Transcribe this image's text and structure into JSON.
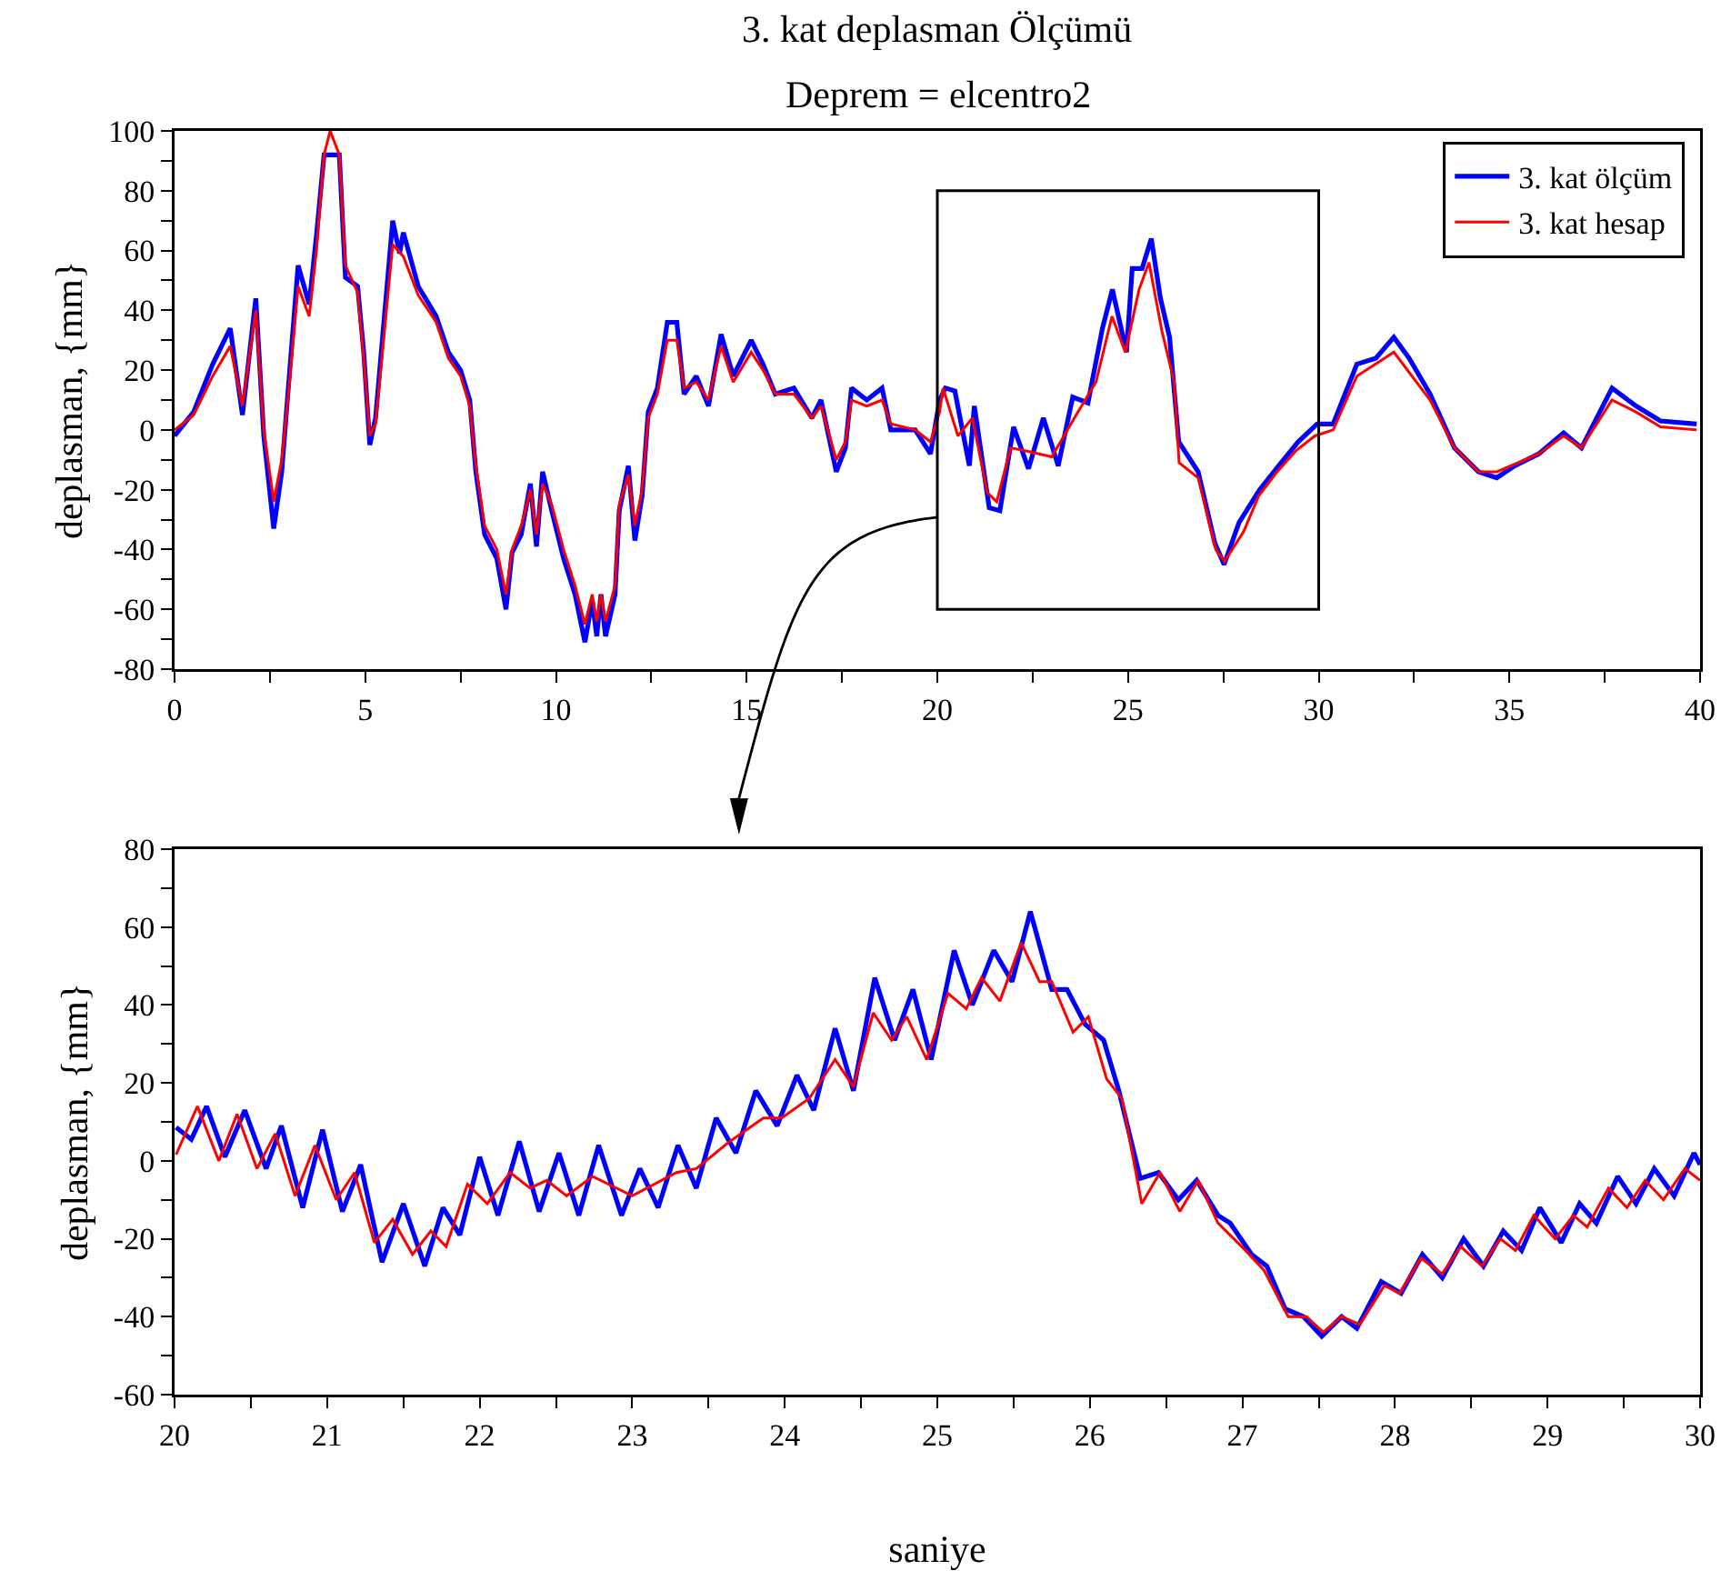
{
  "chart_data": [
    {
      "type": "line",
      "title": "3. kat deplasman Ölçümü",
      "subtitle": "Deprem = elcentro2",
      "ylabel": "deplasman, {mm}",
      "xlim": [
        0,
        40
      ],
      "xticks": [
        0,
        {
          "value": 2.5,
          "label": null
        },
        5,
        {
          "value": 7.5,
          "label": null
        },
        10,
        {
          "value": 12.5,
          "label": null
        },
        15,
        {
          "value": 17.5,
          "label": null
        },
        20,
        {
          "value": 22.5,
          "label": null
        },
        25,
        {
          "value": 27.5,
          "label": null
        },
        30,
        {
          "value": 32.5,
          "label": null
        },
        35,
        {
          "value": 37.5,
          "label": null
        },
        40
      ],
      "ylim": [
        -80,
        100
      ],
      "yticks": [
        -80,
        {
          "value": -70,
          "label": null
        },
        -60,
        {
          "value": -50,
          "label": null
        },
        -40,
        {
          "value": -30,
          "label": null
        },
        -20,
        {
          "value": -10,
          "label": null
        },
        0,
        {
          "value": 10,
          "label": null
        },
        20,
        {
          "value": 30,
          "label": null
        },
        40,
        {
          "value": 50,
          "label": null
        },
        60,
        {
          "value": 70,
          "label": null
        },
        80,
        {
          "value": 90,
          "label": null
        },
        100
      ],
      "grid": false,
      "legend": "top right",
      "line_style": "solid",
      "marker": "none",
      "series": [
        {
          "name": "3. kat ölçüm",
          "color": "#0000ff",
          "x": [
            0,
            0.5,
            1,
            1.46,
            1.78,
            2.13,
            2.34,
            2.6,
            2.81,
            2.97,
            3.24,
            3.53,
            3.72,
            3.92,
            4.32,
            4.48,
            4.8,
            4.96,
            5.12,
            5.27,
            5.72,
            5.9,
            6.0,
            6.39,
            6.86,
            7.18,
            7.5,
            7.74,
            7.9,
            8.13,
            8.45,
            8.69,
            8.85,
            9.09,
            9.33,
            9.49,
            9.65,
            9.89,
            10.2,
            10.5,
            10.76,
            10.95,
            11.07,
            11.18,
            11.3,
            11.55,
            11.66,
            11.9,
            12.07,
            12.26,
            12.42,
            12.66,
            12.92,
            13.17,
            13.36,
            13.68,
            14.0,
            14.33,
            14.65,
            15.12,
            15.43,
            15.75,
            16.24,
            16.71,
            16.95,
            17.35,
            17.59,
            17.75,
            18.15,
            18.55,
            18.78,
            19.42,
            19.82,
            20.06,
            20.21,
            20.46,
            20.84,
            20.97,
            21.36,
            21.64,
            22.0,
            22.39,
            22.78,
            23.17,
            23.55,
            23.95,
            24.33,
            24.59,
            24.96,
            25.11,
            25.37,
            25.61,
            25.85,
            26.09,
            26.33,
            26.84,
            27.28,
            27.52,
            27.91,
            28.45,
            28.95,
            29.46,
            29.96,
            30.38,
            31.0,
            31.5,
            31.97,
            32.37,
            32.92,
            33.56,
            34.19,
            34.67,
            35.14,
            35.77,
            36.42,
            36.89,
            37.69,
            38.32,
            38.96,
            39.91
          ],
          "values": [
            -2,
            6,
            22,
            34,
            5,
            44,
            -2,
            -33,
            -14,
            12,
            55,
            42,
            65,
            92,
            92,
            51,
            48,
            26,
            -5,
            4,
            70,
            59,
            66,
            48,
            38,
            26,
            20,
            10,
            -14,
            -35,
            -43,
            -60,
            -41,
            -35,
            -18,
            -39,
            -14,
            -27,
            -43,
            -55,
            -71,
            -57,
            -69,
            -55,
            -69,
            -55,
            -27,
            -12,
            -37,
            -22,
            6,
            14,
            36,
            36,
            12,
            18,
            8,
            32,
            18,
            30,
            22,
            12,
            14,
            4,
            10,
            -14,
            -6,
            14,
            10,
            14,
            0,
            0,
            -8,
            10,
            14,
            13,
            -12,
            8,
            -26,
            -27,
            1,
            -13,
            4,
            -12,
            11,
            9,
            34,
            47,
            26,
            54,
            54,
            64,
            44,
            31,
            -4,
            -14,
            -38,
            -45,
            -31,
            -20,
            -12,
            -4,
            2,
            2,
            22,
            24,
            31,
            24,
            12,
            -6,
            -14,
            -16,
            -12,
            -8,
            -1,
            -6,
            14,
            8,
            3,
            2
          ]
        },
        {
          "name": "3. kat hesap",
          "color": "#ff0000",
          "x": [
            0,
            0.5,
            1,
            1.46,
            1.78,
            2.13,
            2.34,
            2.6,
            2.81,
            2.97,
            3.24,
            3.53,
            3.72,
            3.92,
            4.08,
            4.32,
            4.48,
            4.8,
            4.96,
            5.12,
            5.27,
            5.72,
            6.0,
            6.39,
            6.86,
            7.18,
            7.5,
            7.74,
            7.9,
            8.13,
            8.45,
            8.69,
            8.85,
            9.09,
            9.33,
            9.49,
            9.65,
            9.89,
            10.2,
            10.5,
            10.76,
            10.95,
            11.07,
            11.18,
            11.3,
            11.55,
            11.66,
            11.9,
            12.07,
            12.26,
            12.42,
            12.66,
            12.92,
            13.17,
            13.36,
            13.68,
            14.0,
            14.33,
            14.65,
            15.12,
            15.43,
            15.75,
            16.24,
            16.71,
            16.95,
            17.35,
            17.59,
            17.75,
            18.15,
            18.55,
            18.78,
            19.42,
            19.82,
            20.06,
            20.15,
            20.54,
            20.92,
            21.31,
            21.56,
            21.92,
            22.33,
            23.0,
            23.64,
            24.16,
            24.58,
            24.93,
            25.29,
            25.55,
            25.89,
            26.21,
            26.34,
            26.84,
            27.3,
            27.53,
            28.03,
            28.43,
            28.91,
            29.4,
            29.9,
            30.38,
            31.0,
            31.97,
            32.92,
            33.56,
            34.19,
            34.67,
            35.77,
            36.42,
            36.89,
            37.69,
            38.32,
            38.96,
            39.91
          ],
          "values": [
            0,
            5,
            18,
            28,
            8,
            40,
            0,
            -24,
            -10,
            10,
            48,
            38,
            60,
            92,
            100,
            92,
            55,
            46,
            24,
            -2,
            2,
            62,
            58,
            45,
            36,
            24,
            18,
            8,
            -12,
            -32,
            -40,
            -55,
            -40,
            -32,
            -20,
            -35,
            -18,
            -25,
            -40,
            -52,
            -65,
            -55,
            -64,
            -55,
            -64,
            -52,
            -25,
            -15,
            -32,
            -20,
            4,
            12,
            30,
            30,
            14,
            16,
            10,
            28,
            16,
            26,
            20,
            12,
            12,
            4,
            8,
            -10,
            -4,
            10,
            8,
            10,
            2,
            0,
            -4,
            6,
            14,
            -2,
            4,
            -21,
            -24,
            -6,
            -7,
            -9,
            5,
            16,
            38,
            26,
            47,
            56,
            33,
            16,
            -11,
            -16,
            -40,
            -44,
            -34,
            -22,
            -14,
            -7,
            -2,
            0,
            18,
            26,
            10,
            -6,
            -14,
            -14,
            -8,
            -2,
            -6,
            10,
            6,
            1,
            0
          ]
        }
      ]
    },
    {
      "type": "line",
      "xlabel": "saniye",
      "ylabel": "deplasman, {mm}",
      "xlim": [
        20,
        30
      ],
      "xticks": [
        20,
        {
          "value": 20.5,
          "label": null
        },
        21,
        {
          "value": 21.5,
          "label": null
        },
        22,
        {
          "value": 22.5,
          "label": null
        },
        23,
        {
          "value": 23.5,
          "label": null
        },
        24,
        {
          "value": 24.5,
          "label": null
        },
        25,
        {
          "value": 25.5,
          "label": null
        },
        26,
        {
          "value": 26.5,
          "label": null
        },
        27,
        {
          "value": 27.5,
          "label": null
        },
        28,
        {
          "value": 28.5,
          "label": null
        },
        29,
        {
          "value": 29.5,
          "label": null
        },
        30
      ],
      "ylim": [
        -60,
        80
      ],
      "yticks": [
        -60,
        {
          "value": -50,
          "label": null
        },
        -40,
        {
          "value": -30,
          "label": null
        },
        -20,
        {
          "value": -10,
          "label": null
        },
        0,
        {
          "value": 10,
          "label": null
        },
        20,
        {
          "value": 30,
          "label": null
        },
        40,
        {
          "value": 50,
          "label": null
        },
        60,
        {
          "value": 70,
          "label": null
        },
        80
      ],
      "grid": false,
      "line_style": "solid",
      "marker": "none",
      "series": [
        {
          "color": "#0000ff",
          "x": [
            20.01,
            20.11,
            20.21,
            20.33,
            20.46,
            20.6,
            20.7,
            20.84,
            20.97,
            21.1,
            21.22,
            21.36,
            21.5,
            21.64,
            21.76,
            21.87,
            22.0,
            22.12,
            22.26,
            22.39,
            22.52,
            22.65,
            22.78,
            22.93,
            23.05,
            23.17,
            23.3,
            23.42,
            23.55,
            23.68,
            23.81,
            23.95,
            24.08,
            24.19,
            24.33,
            24.45,
            24.59,
            24.72,
            24.84,
            24.96,
            25.11,
            25.23,
            25.37,
            25.49,
            25.61,
            25.75,
            25.85,
            25.97,
            26.09,
            26.19,
            26.33,
            26.45,
            26.58,
            26.7,
            26.84,
            26.92,
            27.06,
            27.16,
            27.28,
            27.4,
            27.52,
            27.65,
            27.75,
            27.91,
            28.04,
            28.18,
            28.31,
            28.45,
            28.58,
            28.71,
            28.83,
            28.95,
            29.09,
            29.21,
            29.32,
            29.46,
            29.58,
            29.7,
            29.83,
            29.96,
            30
          ],
          "values": [
            8.6,
            5.5,
            14,
            1,
            13,
            -2,
            9,
            -12,
            8,
            -13,
            -1,
            -26,
            -11,
            -27,
            -12,
            -19,
            1,
            -14,
            5,
            -13,
            2,
            -14,
            4,
            -14,
            -2,
            -12,
            4,
            -7,
            11,
            2,
            18,
            9,
            22,
            13,
            34,
            18,
            47,
            31,
            44,
            26,
            54,
            40,
            54,
            46,
            64,
            44,
            44,
            35,
            31,
            18,
            -4.5,
            -3,
            -10,
            -5,
            -14,
            -16,
            -24,
            -27,
            -38,
            -40,
            -45,
            -40,
            -43,
            -31,
            -34,
            -24,
            -30,
            -20,
            -27,
            -18,
            -23,
            -12,
            -21,
            -11,
            -16,
            -4,
            -11,
            -2,
            -9,
            2,
            -1
          ]
        },
        {
          "color": "#ff0000",
          "x": [
            20.01,
            20.15,
            20.29,
            20.41,
            20.54,
            20.66,
            20.79,
            20.92,
            21.06,
            21.18,
            21.31,
            21.43,
            21.56,
            21.68,
            21.78,
            21.92,
            22.05,
            22.2,
            22.33,
            22.44,
            22.57,
            22.74,
            23.0,
            23.29,
            23.42,
            23.64,
            23.86,
            23.98,
            24.16,
            24.33,
            24.45,
            24.58,
            24.7,
            24.8,
            24.93,
            25.07,
            25.19,
            25.29,
            25.41,
            25.55,
            25.67,
            25.75,
            25.89,
            25.99,
            26.11,
            26.21,
            26.34,
            26.46,
            26.59,
            26.71,
            26.84,
            27.02,
            27.14,
            27.3,
            27.42,
            27.53,
            27.65,
            27.77,
            27.93,
            28.03,
            28.17,
            28.31,
            28.43,
            28.57,
            28.69,
            28.79,
            28.91,
            29.05,
            29.17,
            29.26,
            29.4,
            29.52,
            29.64,
            29.76,
            29.9,
            30
          ],
          "values": [
            1.6,
            14,
            0,
            12,
            -2,
            7,
            -9,
            4,
            -10,
            -3,
            -21,
            -15,
            -24,
            -18,
            -22,
            -6,
            -11,
            -3,
            -7,
            -5,
            -9,
            -4,
            -9,
            -3,
            -2,
            5,
            11,
            11,
            16,
            26,
            19,
            38,
            31,
            37,
            26,
            43,
            39,
            47,
            41,
            56,
            46,
            46,
            33,
            37,
            21,
            16,
            -11,
            -3,
            -13,
            -5,
            -16,
            -23,
            -28,
            -40,
            -40,
            -44,
            -40,
            -42,
            -32,
            -34,
            -25,
            -29,
            -22,
            -27,
            -20,
            -23,
            -14,
            -20,
            -14,
            -17,
            -7,
            -12,
            -5,
            -10,
            -2,
            -5
          ]
        }
      ]
    }
  ]
}
